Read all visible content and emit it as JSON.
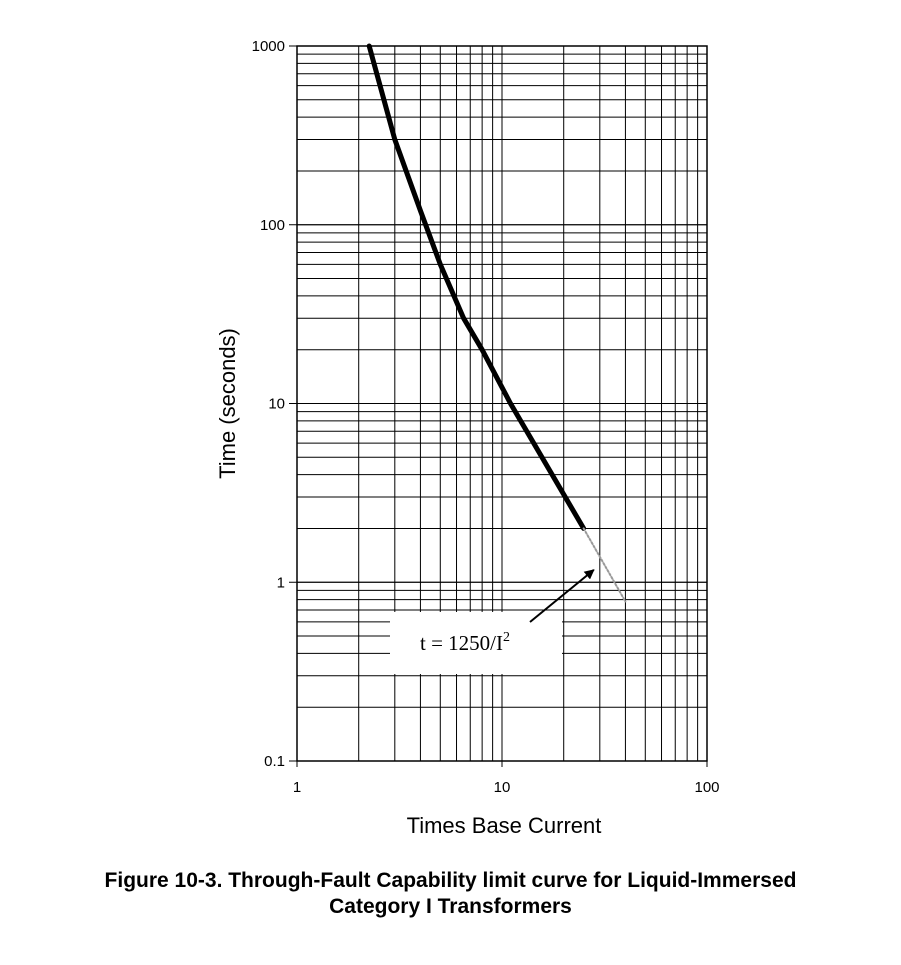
{
  "chart_data": {
    "type": "line",
    "xscale": "log",
    "yscale": "log",
    "xlim": [
      1,
      100
    ],
    "ylim": [
      0.1,
      1000
    ],
    "xlabel": "Times Base Current",
    "ylabel": "Time (seconds)",
    "grid": true,
    "x_ticks": [
      "1",
      "10",
      "100"
    ],
    "y_ticks": [
      "0.1",
      "1",
      "10",
      "100",
      "1000"
    ],
    "series": [
      {
        "style": "thick-solid",
        "color": "#000000",
        "points": [
          [
            2.25,
            1000
          ],
          [
            3.0,
            300
          ],
          [
            4.0,
            120
          ],
          [
            5.0,
            60
          ],
          [
            6.5,
            30
          ],
          [
            8.0,
            20
          ],
          [
            11.0,
            10
          ],
          [
            25.0,
            2.0
          ]
        ]
      },
      {
        "style": "thin-dotted",
        "color": "#999999",
        "points": [
          [
            25.0,
            2.0
          ],
          [
            30.0,
            1.39
          ],
          [
            40.0,
            0.78
          ]
        ]
      }
    ],
    "annotations": [
      {
        "text": "t = 1250/I",
        "superscript": "2",
        "arrow_to": [
          30.0,
          1.3
        ]
      }
    ]
  },
  "figure": {
    "caption_line1": "Figure 10-3. Through-Fault Capability limit curve for Liquid-Immersed",
    "caption_line2": "Category I Transformers"
  }
}
